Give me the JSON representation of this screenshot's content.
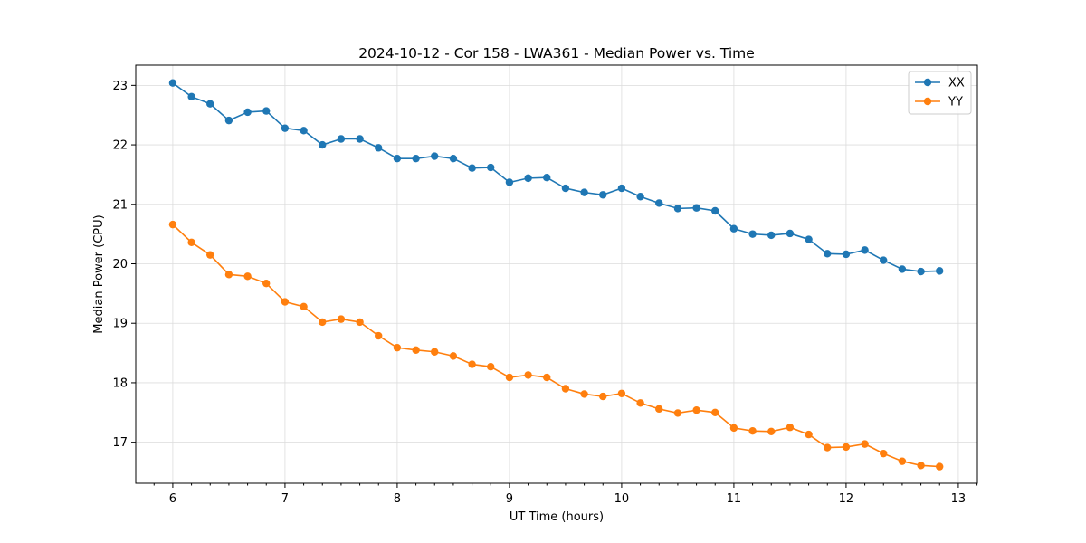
{
  "chart_data": {
    "type": "line",
    "title": "2024-10-12 - Cor 158 - LWA361 - Median Power vs. Time",
    "xlabel": "UT Time (hours)",
    "ylabel": "Median Power (CPU)",
    "xlim": [
      5.67,
      13.17
    ],
    "ylim": [
      16.31,
      23.34
    ],
    "xticks": [
      6,
      7,
      8,
      9,
      10,
      11,
      12,
      13
    ],
    "xtick_labels": [
      "6",
      "7",
      "8",
      "9",
      "10",
      "11",
      "12",
      "13"
    ],
    "yticks": [
      17,
      18,
      19,
      20,
      21,
      22,
      23
    ],
    "ytick_labels": [
      "17",
      "18",
      "19",
      "20",
      "21",
      "22",
      "23"
    ],
    "grid": true,
    "legend_position": "top-right",
    "x": [
      6.0,
      6.167,
      6.333,
      6.5,
      6.667,
      6.833,
      7.0,
      7.167,
      7.333,
      7.5,
      7.667,
      7.833,
      8.0,
      8.167,
      8.333,
      8.5,
      8.667,
      8.833,
      9.0,
      9.167,
      9.333,
      9.5,
      9.667,
      9.833,
      10.0,
      10.167,
      10.333,
      10.5,
      10.667,
      10.833,
      11.0,
      11.167,
      11.333,
      11.5,
      11.667,
      11.833,
      12.0,
      12.167,
      12.333,
      12.5,
      12.667,
      12.833
    ],
    "series": [
      {
        "name": "XX",
        "color": "#1f77b4",
        "values": [
          23.04,
          22.81,
          22.69,
          22.41,
          22.55,
          22.57,
          22.28,
          22.24,
          22.0,
          22.1,
          22.1,
          21.95,
          21.77,
          21.77,
          21.81,
          21.77,
          21.61,
          21.62,
          21.37,
          21.44,
          21.45,
          21.27,
          21.2,
          21.16,
          21.27,
          21.13,
          21.02,
          20.93,
          20.94,
          20.89,
          20.59,
          20.5,
          20.48,
          20.51,
          20.41,
          20.17,
          20.16,
          20.23,
          20.06,
          19.91,
          19.87,
          19.88
        ]
      },
      {
        "name": "YY",
        "color": "#ff7f0e",
        "values": [
          20.66,
          20.36,
          20.15,
          19.82,
          19.79,
          19.67,
          19.36,
          19.28,
          19.02,
          19.07,
          19.02,
          18.79,
          18.59,
          18.55,
          18.52,
          18.45,
          18.31,
          18.27,
          18.09,
          18.13,
          18.09,
          17.9,
          17.81,
          17.77,
          17.82,
          17.66,
          17.56,
          17.49,
          17.54,
          17.5,
          17.24,
          17.19,
          17.18,
          17.25,
          17.13,
          16.91,
          16.92,
          16.97,
          16.81,
          16.68,
          16.61,
          16.59
        ]
      }
    ]
  }
}
